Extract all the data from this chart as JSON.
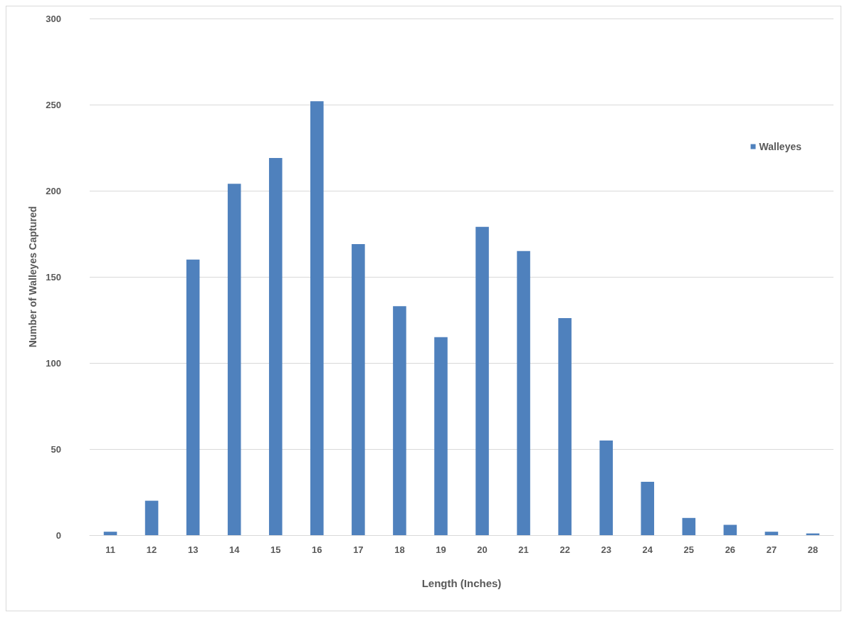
{
  "chart_data": {
    "type": "bar",
    "xlabel": "Length (Inches)",
    "ylabel": "Number of Walleyes Captured",
    "categories": [
      "11",
      "12",
      "13",
      "14",
      "15",
      "16",
      "17",
      "18",
      "19",
      "20",
      "21",
      "22",
      "23",
      "24",
      "25",
      "26",
      "27",
      "28"
    ],
    "series": [
      {
        "name": "Walleyes",
        "color": "#4f81bd",
        "values": [
          2,
          20,
          160,
          204,
          219,
          252,
          169,
          133,
          115,
          179,
          165,
          126,
          55,
          31,
          10,
          6,
          2,
          1
        ]
      }
    ],
    "ylim": [
      0,
      300
    ],
    "yticks": [
      0,
      50,
      100,
      150,
      200,
      250,
      300
    ],
    "grid": "y",
    "legend": "right"
  }
}
